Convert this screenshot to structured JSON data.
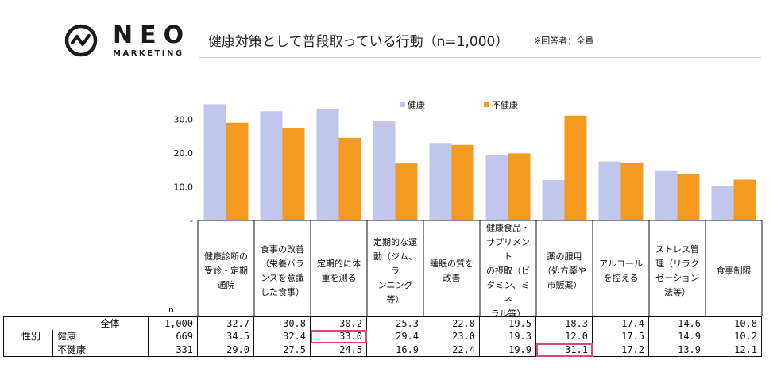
{
  "logo": {
    "brand": "NEO",
    "sub": "MARKETING"
  },
  "title": "健康対策として普段取っている行動（n=1,000）",
  "note": "※回答者：全員",
  "colors": {
    "healthy": "#c1c6ec",
    "unhealthy": "#f49a1e",
    "highlight": "#d9487a"
  },
  "chart_data": {
    "type": "bar",
    "title": "健康対策として普段取っている行動（n=1,000）",
    "categories": [
      "健康診断の受診・定期通院",
      "食事の改善（栄養バランスを意識した食事）",
      "定期的に体重を測る",
      "定期的な運動（ジム、ランニング等）",
      "睡眠の質を改善",
      "健康食品・サプリメントの摂取（ビタミン、ミネラル等）",
      "薬の服用（処方薬や市販薬）",
      "アルコールを控える",
      "ストレス管理（リラクゼーション法等）",
      "食事制限"
    ],
    "series": [
      {
        "name": "健康",
        "values": [
          34.5,
          32.4,
          33.0,
          29.4,
          23.0,
          19.3,
          12.0,
          17.5,
          14.9,
          10.2
        ]
      },
      {
        "name": "不健康",
        "values": [
          29.0,
          27.5,
          24.5,
          16.9,
          22.4,
          19.9,
          31.1,
          17.2,
          13.9,
          12.1
        ]
      }
    ],
    "ylim": [
      0,
      40
    ],
    "yticks": [
      "-",
      "10.0",
      "20.0",
      "30.0"
    ],
    "legend": "top-center",
    "xlabel": "",
    "ylabel": ""
  },
  "category_lines": [
    [
      "健康診断の",
      "受診・定期",
      "通院"
    ],
    [
      "食事の改善",
      "（栄養バラ",
      "ンスを意識",
      "した食事）"
    ],
    [
      "定期的に体",
      "重を測る"
    ],
    [
      "定期的な運",
      "動（ジム、ラ",
      "ンニング",
      "等）"
    ],
    [
      "睡眠の質を",
      "改善"
    ],
    [
      "健康食品・",
      "サプリメント",
      "の摂取（ビ",
      "タミン、ミネ",
      "ラル等）"
    ],
    [
      "薬の服用",
      "（処方薬や",
      "市販薬）"
    ],
    [
      "アルコール",
      "を控える"
    ],
    [
      "ストレス管",
      "理（リラク",
      "ゼーション",
      "法等）"
    ],
    [
      "食事制限"
    ]
  ],
  "table": {
    "n_header": "n",
    "group_label": "性別",
    "rows": [
      {
        "label": "全体",
        "n": "1,000",
        "values": [
          "32.7",
          "30.8",
          "30.2",
          "25.3",
          "22.8",
          "19.5",
          "18.3",
          "17.4",
          "14.6",
          "10.8"
        ]
      },
      {
        "label": "健康",
        "n": "669",
        "values": [
          "34.5",
          "32.4",
          "33.0",
          "29.4",
          "23.0",
          "19.3",
          "12.0",
          "17.5",
          "14.9",
          "10.2"
        ]
      },
      {
        "label": "不健康",
        "n": "331",
        "values": [
          "29.0",
          "27.5",
          "24.5",
          "16.9",
          "22.4",
          "19.9",
          "31.1",
          "17.2",
          "13.9",
          "12.1"
        ]
      }
    ]
  }
}
